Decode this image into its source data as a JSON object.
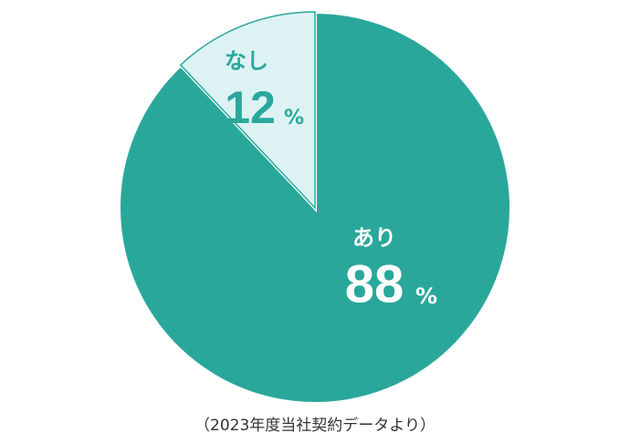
{
  "chart_data": {
    "type": "pie",
    "categories": [
      "あり",
      "なし"
    ],
    "values": [
      88,
      12
    ],
    "colors": [
      "#2aa79b",
      "#ddf3f3"
    ],
    "label_colors": [
      "#ffffff",
      "#2aa79b"
    ],
    "unit": "%",
    "note": "（2023年度当社契約データより）"
  }
}
